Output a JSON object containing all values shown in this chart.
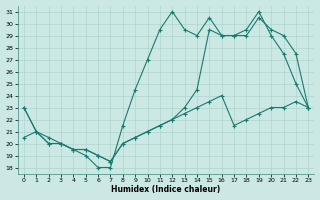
{
  "xlabel": "Humidex (Indice chaleur)",
  "bg_color": "#cce8e4",
  "line_color": "#1a7a6e",
  "xlim": [
    -0.5,
    23.5
  ],
  "ylim": [
    17.5,
    31.5
  ],
  "xticks": [
    0,
    1,
    2,
    3,
    4,
    5,
    6,
    7,
    8,
    9,
    10,
    11,
    12,
    13,
    14,
    15,
    16,
    17,
    18,
    19,
    20,
    21,
    22,
    23
  ],
  "yticks": [
    18,
    19,
    20,
    21,
    22,
    23,
    24,
    25,
    26,
    27,
    28,
    29,
    30,
    31
  ],
  "curve1_x": [
    0,
    1,
    2,
    3,
    4,
    5,
    6,
    7,
    8,
    9,
    10,
    11,
    12,
    13,
    14,
    15,
    16,
    17,
    18,
    19,
    20,
    21,
    22,
    23
  ],
  "curve1_y": [
    23.0,
    21.0,
    20.5,
    20.0,
    19.5,
    19.0,
    18.0,
    18.0,
    21.5,
    24.5,
    27.0,
    29.5,
    31.0,
    29.5,
    29.0,
    30.5,
    29.0,
    29.0,
    29.5,
    31.0,
    29.0,
    27.5,
    25.0,
    23.0
  ],
  "curve2_x": [
    0,
    1,
    2,
    3,
    4,
    5,
    6,
    7,
    8,
    9,
    10,
    11,
    12,
    13,
    14,
    15,
    16,
    17,
    18,
    19,
    20,
    21,
    22,
    23
  ],
  "curve2_y": [
    23.0,
    21.0,
    20.0,
    20.0,
    19.5,
    19.5,
    19.0,
    18.5,
    20.0,
    20.5,
    21.0,
    21.5,
    22.0,
    23.0,
    24.5,
    29.5,
    29.0,
    29.0,
    29.0,
    30.5,
    29.5,
    29.0,
    27.5,
    23.0
  ],
  "curve3_x": [
    0,
    1,
    2,
    3,
    4,
    5,
    6,
    7,
    8,
    9,
    10,
    11,
    12,
    13,
    14,
    15,
    16,
    17,
    18,
    19,
    20,
    21,
    22,
    23
  ],
  "curve3_y": [
    20.5,
    21.0,
    20.0,
    20.0,
    19.5,
    19.5,
    19.0,
    18.5,
    20.0,
    20.5,
    21.0,
    21.5,
    22.0,
    22.5,
    23.0,
    23.5,
    24.0,
    21.5,
    22.0,
    22.5,
    23.0,
    23.0,
    23.5,
    23.0
  ]
}
